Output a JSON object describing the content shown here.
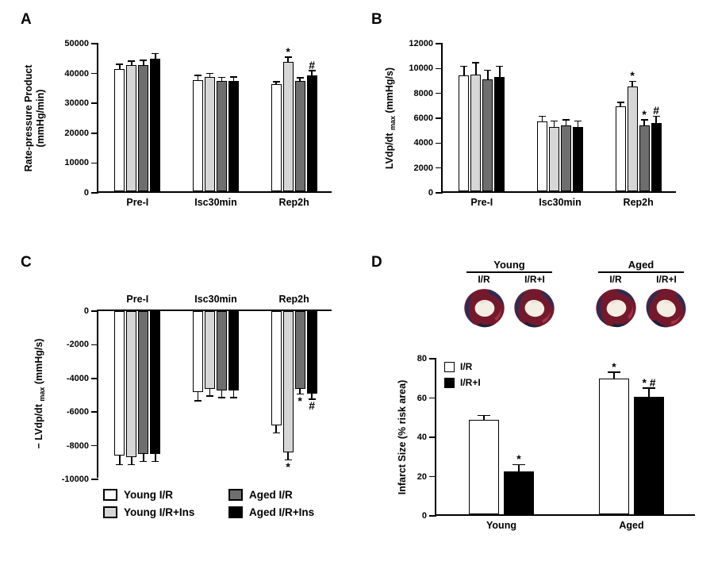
{
  "figure": {
    "background": "#ffffff",
    "panel_letters": {
      "a": "A",
      "b": "B",
      "c": "C",
      "d": "D"
    }
  },
  "colors": {
    "young_ir": "#ffffff",
    "young_ir_ins": "#d6d6d6",
    "aged_ir": "#6e6e6e",
    "aged_ir_ins": "#000000",
    "axis": "#000000"
  },
  "legend_c": {
    "items": [
      {
        "label": "Young I/R",
        "color": "#ffffff"
      },
      {
        "label": "Young I/R+Ins",
        "color": "#d6d6d6"
      },
      {
        "label": "Aged I/R",
        "color": "#6e6e6e"
      },
      {
        "label": "Aged I/R+Ins",
        "color": "#000000"
      }
    ]
  },
  "hearts": {
    "groups": [
      {
        "label": "Young",
        "conditions": [
          "I/R",
          "I/R+I"
        ]
      },
      {
        "label": "Aged",
        "conditions": [
          "I/R",
          "I/R+I"
        ]
      }
    ]
  },
  "chart_data": [
    {
      "id": "A",
      "type": "bar",
      "title": "",
      "ylabel": "Rate-pressure Product (mmHg/min)",
      "ylabel_lines": [
        "Rate-pressure Product",
        "(mmHg/min)"
      ],
      "ylim": [
        0,
        50000
      ],
      "yticks": [
        0,
        10000,
        20000,
        30000,
        40000,
        50000
      ],
      "categories": [
        "Pre-I",
        "Isc30min",
        "Rep2h"
      ],
      "grid": false,
      "series": [
        {
          "name": "Young I/R",
          "color": "#ffffff",
          "values": [
            41000,
            37300,
            35800
          ],
          "errors": [
            1300,
            1400,
            700
          ],
          "sig": [
            "",
            "",
            ""
          ]
        },
        {
          "name": "Young I/R+Ins",
          "color": "#d6d6d6",
          "values": [
            42300,
            38400,
            43400
          ],
          "errors": [
            1100,
            900,
            1300
          ],
          "sig": [
            "",
            "",
            "*"
          ]
        },
        {
          "name": "Aged I/R",
          "color": "#6e6e6e",
          "values": [
            42300,
            36900,
            37100
          ],
          "errors": [
            1400,
            1100,
            700
          ],
          "sig": [
            "",
            "",
            ""
          ]
        },
        {
          "name": "Aged I/R+Ins",
          "color": "#000000",
          "values": [
            44400,
            37000,
            38800
          ],
          "errors": [
            1500,
            1100,
            1400
          ],
          "sig": [
            "",
            "",
            "#"
          ]
        }
      ]
    },
    {
      "id": "B",
      "type": "bar",
      "title": "",
      "ylabel": "LVdp/dt max (mmHg/s)",
      "ylabel_parts": [
        "LVdp/dt ",
        "max",
        " (mmHg/s)"
      ],
      "ylim": [
        0,
        12000
      ],
      "yticks": [
        0,
        2000,
        4000,
        6000,
        8000,
        10000,
        12000
      ],
      "categories": [
        "Pre-I",
        "Isc30min",
        "Rep2h"
      ],
      "grid": false,
      "series": [
        {
          "name": "Young I/R",
          "color": "#ffffff",
          "values": [
            9300,
            5600,
            6800
          ],
          "errors": [
            700,
            400,
            300
          ],
          "sig": [
            "",
            "",
            ""
          ]
        },
        {
          "name": "Young I/R+Ins",
          "color": "#d6d6d6",
          "values": [
            9400,
            5200,
            8400
          ],
          "errors": [
            900,
            400,
            400
          ],
          "sig": [
            "",
            "",
            "*"
          ]
        },
        {
          "name": "Aged I/R",
          "color": "#6e6e6e",
          "values": [
            9000,
            5300,
            5300
          ],
          "errors": [
            700,
            400,
            400
          ],
          "sig": [
            "",
            "",
            "*"
          ]
        },
        {
          "name": "Aged I/R+Ins",
          "color": "#000000",
          "values": [
            9200,
            5200,
            5500
          ],
          "errors": [
            800,
            400,
            500
          ],
          "sig": [
            "",
            "",
            "#"
          ]
        }
      ]
    },
    {
      "id": "C",
      "type": "bar",
      "title": "",
      "direction": "down",
      "ylabel": "− LVdp/dt max (mmHg/s)",
      "ylabel_parts": [
        "− LVdp/dt ",
        "max",
        " (mmHg/s)"
      ],
      "ylim": [
        -10000,
        0
      ],
      "yticks": [
        0,
        -2000,
        -4000,
        -6000,
        -8000,
        -10000
      ],
      "categories": [
        "Pre-I",
        "Isc30min",
        "Rep2h"
      ],
      "grid": false,
      "series": [
        {
          "name": "Young I/R",
          "color": "#ffffff",
          "values": [
            -8600,
            -4800,
            -6800
          ],
          "errors": [
            500,
            500,
            400
          ],
          "sig": [
            "",
            "",
            ""
          ]
        },
        {
          "name": "Young I/R+Ins",
          "color": "#d6d6d6",
          "values": [
            -8700,
            -4600,
            -8400
          ],
          "errors": [
            400,
            400,
            400
          ],
          "sig": [
            "",
            "",
            "*"
          ]
        },
        {
          "name": "Aged I/R",
          "color": "#6e6e6e",
          "values": [
            -8500,
            -4700,
            -4600
          ],
          "errors": [
            400,
            400,
            300
          ],
          "sig": [
            "",
            "",
            "*"
          ]
        },
        {
          "name": "Aged I/R+Ins",
          "color": "#000000",
          "values": [
            -8500,
            -4700,
            -4900
          ],
          "errors": [
            400,
            400,
            300
          ],
          "sig": [
            "",
            "",
            "#"
          ]
        }
      ]
    },
    {
      "id": "D",
      "type": "bar",
      "title": "",
      "ylabel": "Infarct Size (% risk area)",
      "ylim": [
        0,
        80
      ],
      "yticks": [
        0,
        20,
        40,
        60,
        80
      ],
      "categories": [
        "Young",
        "Aged"
      ],
      "grid": false,
      "legend": {
        "position": "top-left",
        "items": [
          {
            "label": "I/R",
            "color": "#ffffff"
          },
          {
            "label": "I/R+I",
            "color": "#000000"
          }
        ]
      },
      "series": [
        {
          "name": "I/R",
          "color": "#ffffff",
          "values": [
            48,
            69
          ],
          "errors": [
            2,
            3
          ],
          "sig": [
            "",
            "*"
          ]
        },
        {
          "name": "I/R+I",
          "color": "#000000",
          "values": [
            22,
            60
          ],
          "errors": [
            3,
            4
          ],
          "sig": [
            "*",
            "* #"
          ]
        }
      ]
    }
  ]
}
